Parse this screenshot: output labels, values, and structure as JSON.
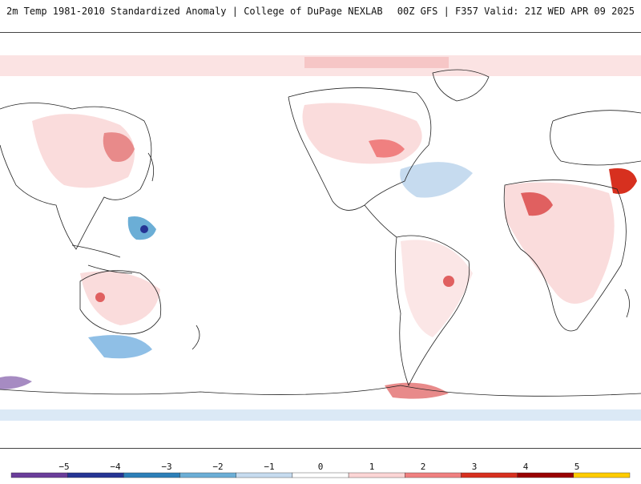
{
  "header": {
    "left_title": "2m Temp 1981-2010 Standardized Anomaly | College of DuPage NEXLAB",
    "right_title": "00Z GFS | F357 Valid: 21Z WED APR 09 2025"
  },
  "colorbar": {
    "ticks": [
      "−5",
      "−4",
      "−3",
      "−2",
      "−1",
      "0",
      "1",
      "2",
      "3",
      "4",
      "5"
    ],
    "colors": [
      "#6a3d9a",
      "#253494",
      "#2c7fb8",
      "#6baed6",
      "#c6dbef",
      "#ffffff",
      "#fcd5d5",
      "#f08080",
      "#d7301f",
      "#990000",
      "#ffcc00"
    ]
  },
  "palette": {
    "warm_light": "#fadcdc",
    "warm_mid": "#f0a0a0",
    "warm_strong": "#d7301f",
    "cool_light": "#dbe9f6",
    "cool_mid": "#8fbfe6",
    "cool_strong": "#2c6fb8",
    "coastline": "#222222"
  }
}
